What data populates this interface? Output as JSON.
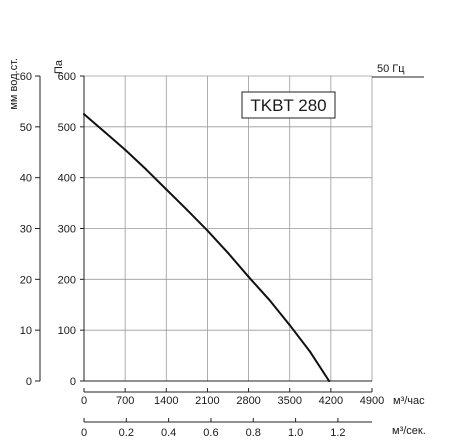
{
  "chart_data": {
    "type": "line",
    "title": "TKBT 280",
    "frequency_label": "50 Гц",
    "x_primary": {
      "label": "м³/час",
      "ticks": [
        0,
        700,
        1400,
        2100,
        2800,
        3500,
        4200,
        4900
      ],
      "range": [
        0,
        4900
      ]
    },
    "x_secondary": {
      "label": "м³/сек.",
      "ticks": [
        "0",
        "0.2",
        "0.4",
        "0.6",
        "0.8",
        "1.0",
        "1.2"
      ],
      "range": [
        0,
        1.3611
      ]
    },
    "y_primary": {
      "label": "Па",
      "ticks": [
        0,
        100,
        200,
        300,
        400,
        500,
        600
      ],
      "range": [
        0,
        600
      ]
    },
    "y_secondary": {
      "label": "мм вод.ст.",
      "ticks": [
        0,
        10,
        20,
        30,
        40,
        50,
        60
      ],
      "range": [
        0,
        60
      ]
    },
    "grid": true,
    "series": [
      {
        "x": [
          0,
          350,
          700,
          1050,
          1400,
          1750,
          2100,
          2450,
          2800,
          3150,
          3500,
          3850,
          4170
        ],
        "y": [
          525,
          490,
          455,
          417,
          377,
          337,
          296,
          252,
          205,
          160,
          110,
          57,
          0
        ]
      }
    ]
  }
}
